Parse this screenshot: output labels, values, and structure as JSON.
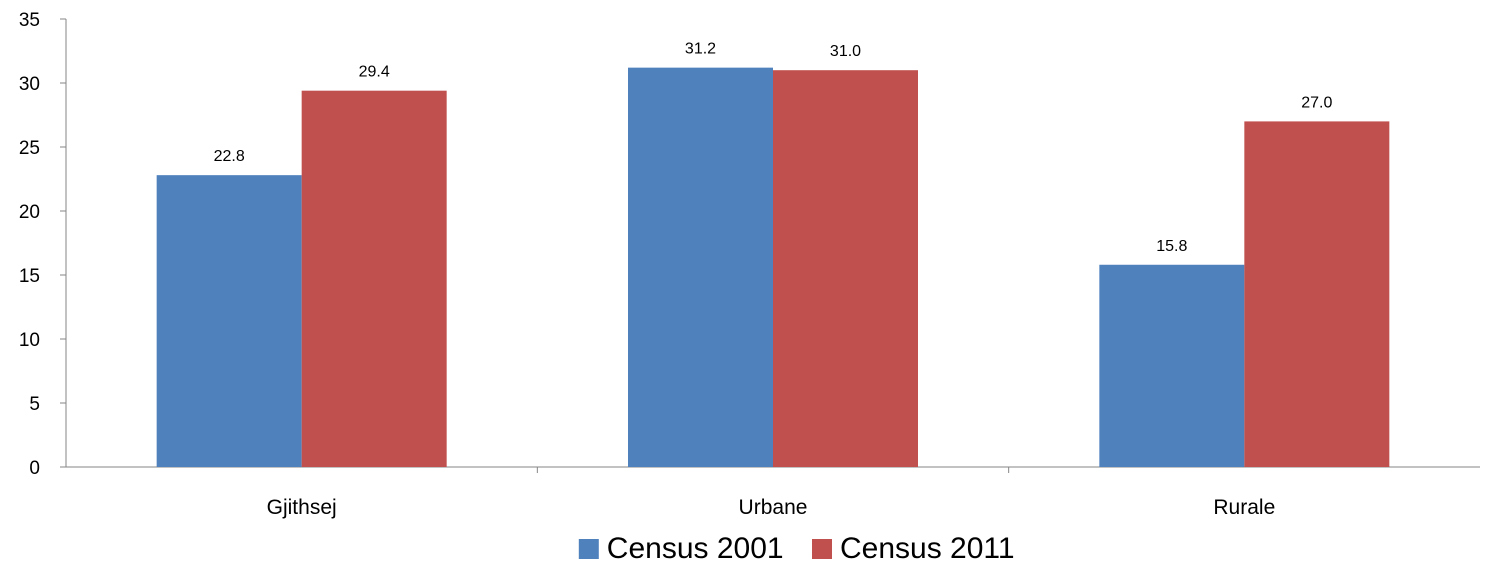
{
  "chart_data": {
    "type": "bar",
    "title": "",
    "xlabel": "",
    "ylabel": "",
    "categories": [
      "Gjithsej",
      "Urbane",
      "Rurale"
    ],
    "series": [
      {
        "name": "Census 2001",
        "values": [
          22.8,
          31.2,
          15.8
        ],
        "labels": [
          "22.8",
          "31.2",
          "15.8"
        ],
        "color": "#4F81BD"
      },
      {
        "name": "Census 2011",
        "values": [
          29.4,
          31.0,
          27.0
        ],
        "labels": [
          "29.4",
          "31.0",
          "27.0"
        ],
        "color": "#C0504D"
      }
    ],
    "ylim": [
      0,
      35
    ],
    "yticks": [
      "0",
      "5",
      "10",
      "15",
      "20",
      "25",
      "30",
      "35"
    ],
    "grid": false,
    "legend_position": "bottom"
  }
}
